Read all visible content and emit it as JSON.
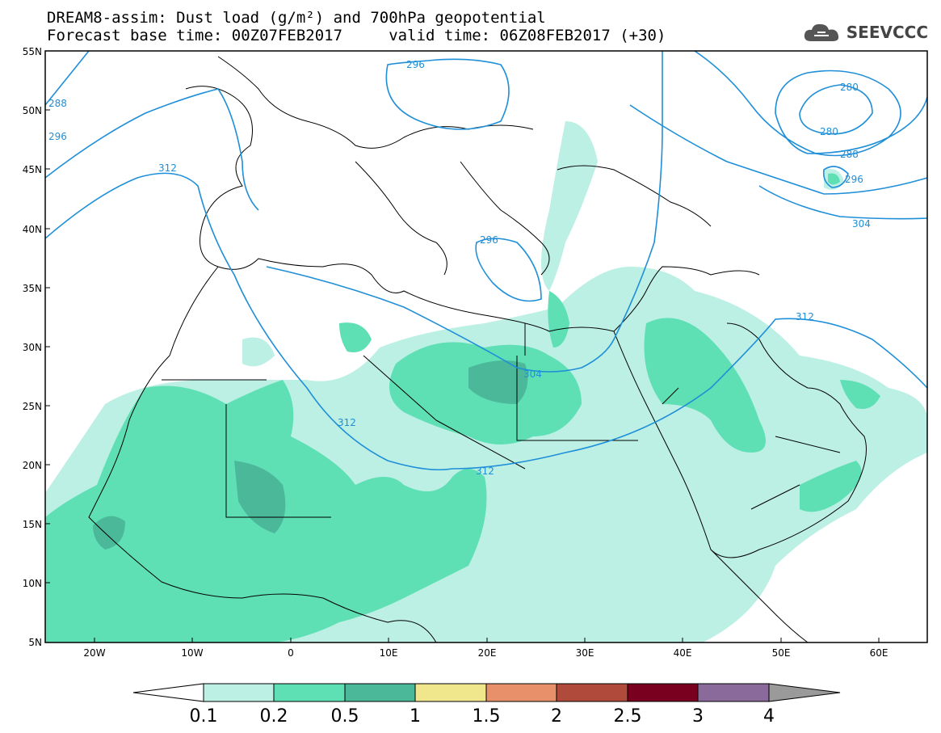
{
  "header": {
    "title_line1": "DREAM8-assim: Dust load (g/m²) and 700hPa geopotential",
    "title_line2": "Forecast base time: 00Z07FEB2017     valid time: 06Z08FEB2017 (+30)"
  },
  "logo": {
    "text": "SEEVCCC",
    "icon": "cloud-logo-icon"
  },
  "map": {
    "lat_labels": [
      "55N",
      "50N",
      "45N",
      "40N",
      "35N",
      "30N",
      "25N",
      "20N",
      "15N",
      "10N",
      "5N"
    ],
    "lon_labels": [
      "20W",
      "10W",
      "0",
      "10E",
      "20E",
      "30E",
      "40E",
      "50E",
      "60E"
    ],
    "contour_labels": [
      "288",
      "296",
      "312",
      "296",
      "296",
      "280",
      "280",
      "288",
      "296",
      "304",
      "312",
      "304",
      "312",
      "312"
    ],
    "contour_color": "#1e8fd8",
    "coastline_color": "#000000"
  },
  "colorbar": {
    "levels": [
      "0.1",
      "0.2",
      "0.5",
      "1",
      "1.5",
      "2",
      "2.5",
      "3",
      "4"
    ],
    "colors": [
      "#ffffff",
      "#bdf0e4",
      "#5ee0b4",
      "#4bb899",
      "#f0e68c",
      "#e8906a",
      "#b04a3a",
      "#7a0020",
      "#8a6a9a",
      "#9a9a9a"
    ]
  }
}
